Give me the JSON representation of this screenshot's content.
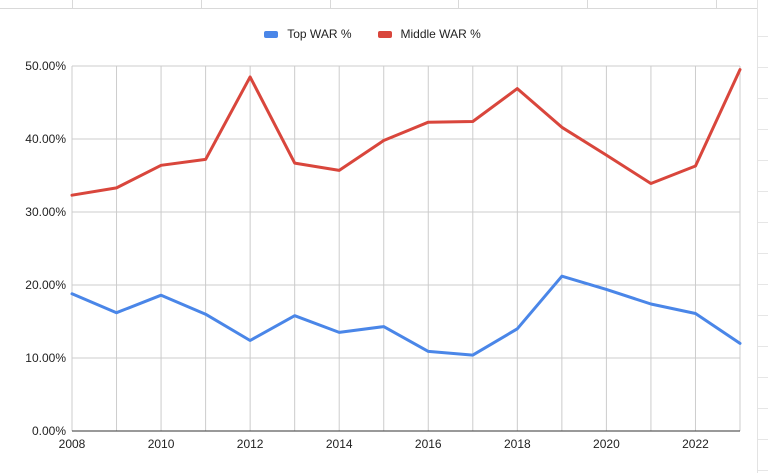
{
  "chart_data": {
    "type": "line",
    "title": "",
    "xlabel": "",
    "ylabel": "",
    "x": [
      2008,
      2009,
      2010,
      2011,
      2012,
      2013,
      2014,
      2015,
      2016,
      2017,
      2018,
      2019,
      2020,
      2021,
      2022,
      2023
    ],
    "series": [
      {
        "name": "Top WAR %",
        "color": "#4a86e8",
        "values": [
          18.8,
          16.2,
          18.6,
          16.0,
          12.4,
          15.8,
          13.5,
          14.3,
          10.9,
          10.4,
          14.0,
          21.2,
          19.4,
          17.4,
          16.1,
          12.0
        ]
      },
      {
        "name": "Middle WAR %",
        "color": "#d9463c",
        "values": [
          32.3,
          33.3,
          36.4,
          37.2,
          48.5,
          36.7,
          35.7,
          39.8,
          42.3,
          42.4,
          46.9,
          41.6,
          37.8,
          33.9,
          36.3,
          49.5
        ]
      }
    ],
    "ylim": [
      0,
      50
    ],
    "xlim": [
      2008,
      2023
    ],
    "y_ticks": [
      "0.00%",
      "10.00%",
      "20.00%",
      "30.00%",
      "40.00%",
      "50.00%"
    ],
    "x_ticks": [
      "2008",
      "2010",
      "2012",
      "2014",
      "2016",
      "2018",
      "2020",
      "2022"
    ],
    "grid": true,
    "legend_position": "top-center"
  }
}
